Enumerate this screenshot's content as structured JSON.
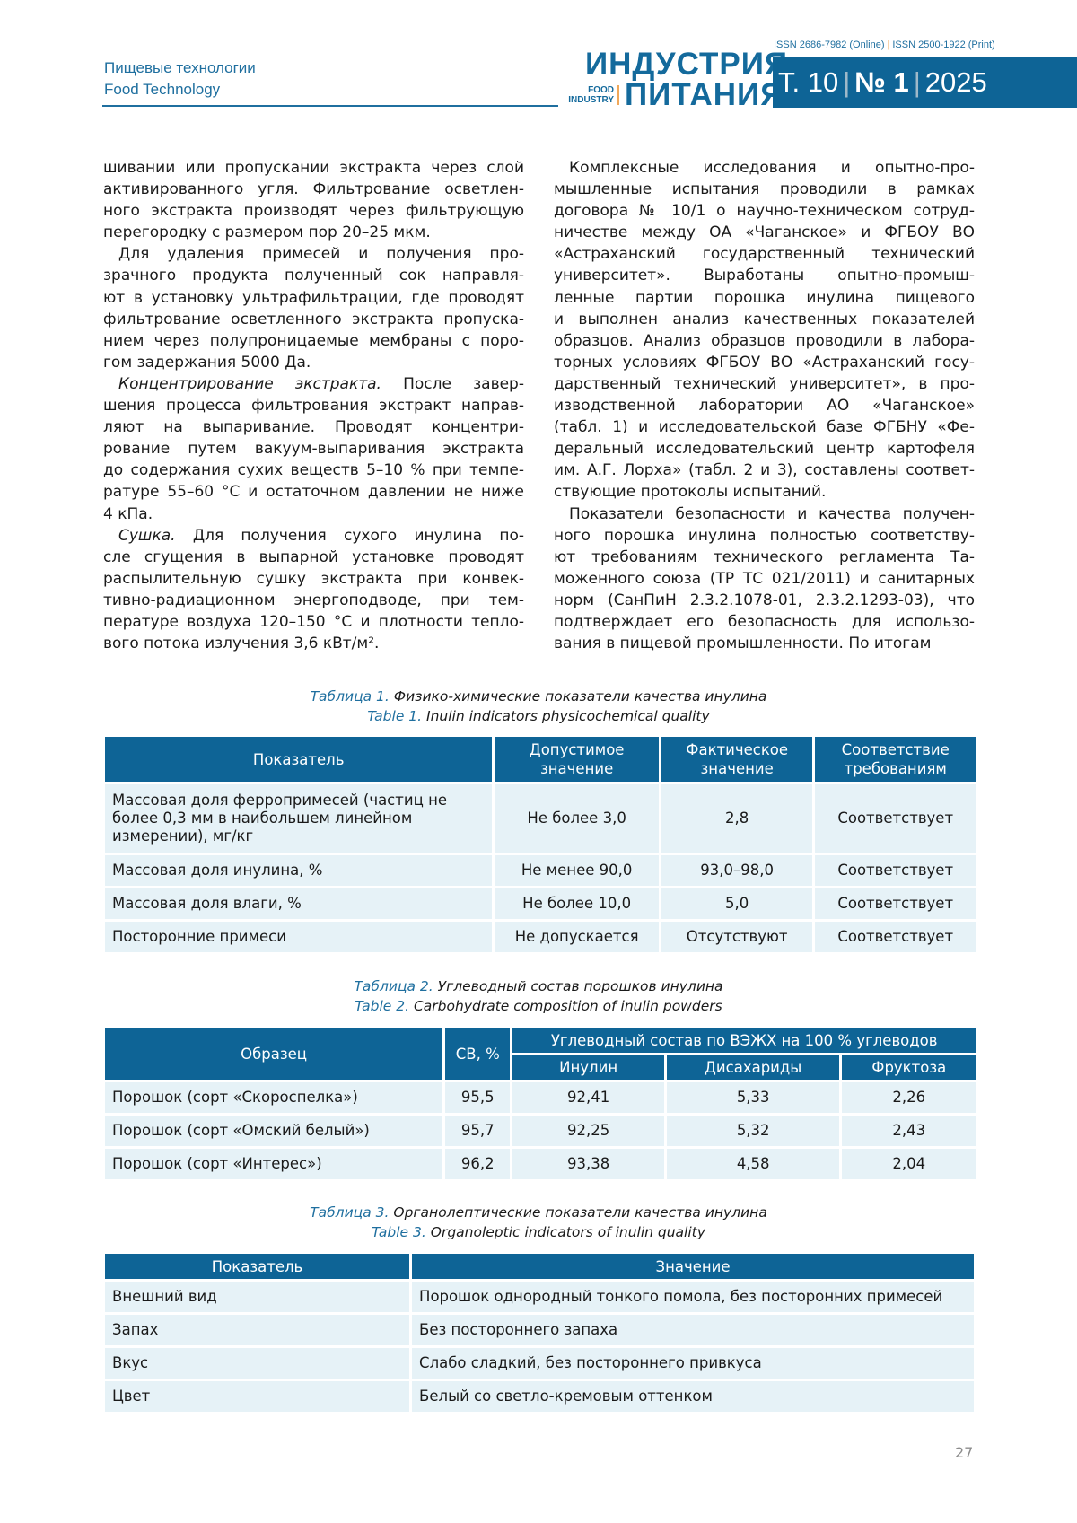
{
  "header": {
    "section_ru": "Пищевые технологии",
    "section_en": "Food Technology",
    "issn_online": "ISSN 2686-7982 (Online)",
    "issn_print": "ISSN 2500-1922 (Print)",
    "logo_top": "ИНДУСТРИЯ",
    "logo_bottom": "ПИТАНИЯ",
    "logo_small_1": "FOOD",
    "logo_small_2": "INDUSTRY",
    "volume": "Т. 10",
    "issue": "№ 1",
    "year": "2025"
  },
  "left_column": [
    [
      "шивании или пропускании экстракта через слой",
      "активированного угля. Фильтрование осветлен-",
      "ного экстракта производят через фильтрующую",
      "перегородку с размером пор 20–25 мкм."
    ],
    [
      "Для удаления примесей и получения про-",
      "зрачного продукта полученный сок направля-",
      "ют в установку ультрафильтрации, где проводят",
      "фильтрование осветленного экстракта пропуска-",
      "нием через полупроницаемые мембраны с поро-",
      "гом задержания 5000 Да."
    ],
    [
      "|Концентрирование экстракта.| После завер-",
      "шения процесса фильтрования экстракт направ-",
      "ляют на выпаривание. Проводят концентри-",
      "рование путем вакуум-выпаривания экстракта",
      "до содержания сухих веществ 5–10 % при темпе-",
      "ратуре 55–60 °С и остаточном давлении не ниже",
      "4 кПа."
    ],
    [
      "|Сушка.| Для получения сухого инулина по-",
      "сле сгущения в выпарной установке проводят",
      "распылительную сушку экстракта при конвек-",
      "тивно-радиационном энергоподводе, при тем-",
      "пературе воздуха 120–150 °С и плотности тепло-",
      "вого потока излучения 3,6 кВт/м²."
    ]
  ],
  "right_column": [
    [
      "Комплексные исследования и опытно-про-",
      "мышленные испытания проводили в рамках",
      "договора № 10/1 о научно-техническом сотруд-",
      "ничестве между ОА «Чаганское» и ФГБОУ ВО",
      "«Астраханский государственный технический",
      "университет». Выработаны опытно-промыш-",
      "ленные партии порошка инулина пищевого",
      "и выполнен анализ качественных показателей",
      "образцов. Анализ образцов проводили в лабора-",
      "торных условиях ФГБОУ ВО «Астраханский госу-",
      "дарственный технический университет», в про-",
      "изводственной лаборатории АО «Чаганское»",
      "(табл. 1) и исследовательской базе ФГБНУ «Фе-",
      "деральный исследовательский центр картофеля",
      "им. А.Г. Лорха» (табл. 2 и 3), составлены соответ-",
      "ствующие протоколы испытаний."
    ],
    [
      "Показатели безопасности и качества получен-",
      "ного порошка инулина полностью соответству-",
      "ют требованиям технического регламента Та-",
      "моженного союза (ТР ТС 021/2011) и санитарных",
      "норм (СанПиН 2.3.2.1078-01, 2.3.2.1293-03), что",
      "подтверждает его безопасность для использо-",
      "вания в пищевой промышленности. По итогам"
    ]
  ],
  "table1": {
    "label_ru": "Таблица 1.",
    "title_ru": "Физико-химические показатели качества инулина",
    "label_en": "Table 1.",
    "title_en": "Inulin indicators physicochemical quality",
    "headers": [
      "Показатель",
      "Допустимое значение",
      "Фактическое значение",
      "Соответствие требованиям"
    ],
    "rows": [
      [
        "Массовая доля ферропримесей (частиц не более 0,3 мм в наибольшем линейном измерении), мг/кг",
        "Не более 3,0",
        "2,8",
        "Соответствует"
      ],
      [
        "Массовая доля инулина, %",
        "Не менее 90,0",
        "93,0–98,0",
        "Соответствует"
      ],
      [
        "Массовая доля влаги, %",
        "Не более 10,0",
        "5,0",
        "Соответствует"
      ],
      [
        "Посторонние примеси",
        "Не допускается",
        "Отсутствуют",
        "Соответствует"
      ]
    ]
  },
  "table2": {
    "label_ru": "Таблица 2.",
    "title_ru": "Углеводный состав порошков инулина",
    "label_en": "Table 2.",
    "title_en": "Carbohydrate composition of inulin powders",
    "headers": [
      "Образец",
      "СВ, %",
      "Углеводный состав по ВЭЖХ на 100 % углеводов"
    ],
    "subheaders": [
      "Инулин",
      "Дисахариды",
      "Фруктоза"
    ],
    "rows": [
      [
        "Порошок (сорт «Скороспелка»)",
        "95,5",
        "92,41",
        "5,33",
        "2,26"
      ],
      [
        "Порошок (сорт «Омский белый»)",
        "95,7",
        "92,25",
        "5,32",
        "2,43"
      ],
      [
        "Порошок (сорт «Интерес»)",
        "96,2",
        "93,38",
        "4,58",
        "2,04"
      ]
    ]
  },
  "table3": {
    "label_ru": "Таблица 3.",
    "title_ru": "Органолептические показатели качества инулина",
    "label_en": "Table 3.",
    "title_en": "Organoleptic indicators of inulin quality",
    "headers": [
      "Показатель",
      "Значение"
    ],
    "rows": [
      [
        "Внешний вид",
        "Порошок однородный тонкого помола, без посторонних примесей"
      ],
      [
        "Запах",
        "Без постороннего запаха"
      ],
      [
        "Вкус",
        "Слабо сладкий, без постороннего привкуса"
      ],
      [
        "Цвет",
        "Белый со светло-кремовым оттенком"
      ]
    ]
  },
  "page_number": "27",
  "colors": {
    "brand_blue": "#0e6496",
    "row_bg": "#e6f2f7",
    "accent_orange": "#f0a85a"
  }
}
